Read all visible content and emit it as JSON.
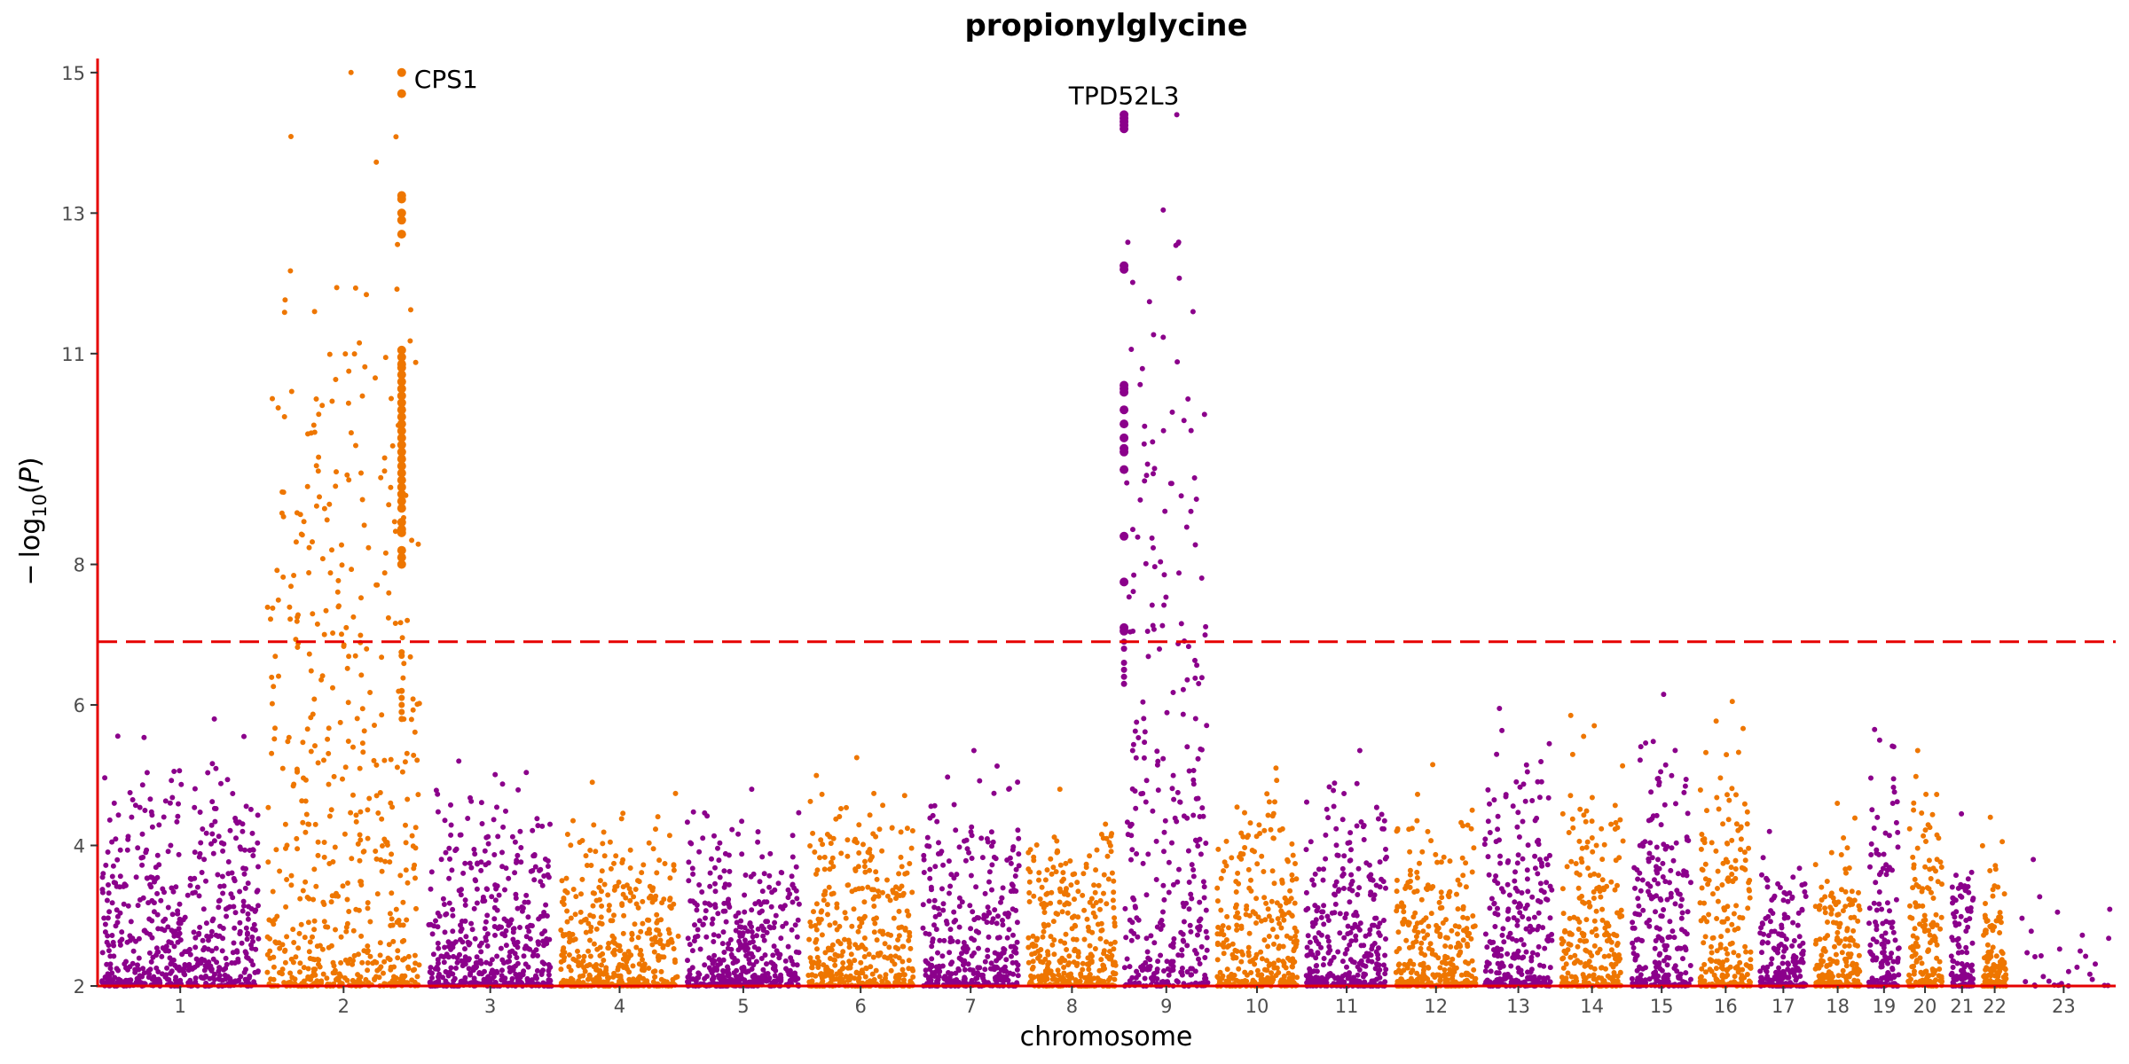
{
  "chart_data": {
    "type": "scatter",
    "subtype": "manhattan",
    "title": "propionylglycine",
    "xlabel": "chromosome",
    "ylabel": "−log10(P)",
    "ylabel_parts": {
      "minus": "−",
      "log": "log",
      "sub": "10",
      "open": "(",
      "p": "P",
      "close": ")"
    },
    "ylim": [
      2,
      15.2
    ],
    "yticks": [
      2,
      4,
      6,
      8,
      11,
      13,
      15
    ],
    "threshold_line": 6.9,
    "colors": {
      "odd": "#8B008B",
      "even": "#EE7600",
      "axis": "#e60000",
      "threshold": "#e60000"
    },
    "chromosomes": [
      {
        "label": "1",
        "len": 248,
        "max": 5.8
      },
      {
        "label": "2",
        "len": 242,
        "max": 15.0
      },
      {
        "label": "3",
        "len": 198,
        "max": 5.2
      },
      {
        "label": "4",
        "len": 190,
        "max": 4.9
      },
      {
        "label": "5",
        "len": 181,
        "max": 4.8
      },
      {
        "label": "6",
        "len": 171,
        "max": 5.25
      },
      {
        "label": "7",
        "len": 159,
        "max": 5.35
      },
      {
        "label": "8",
        "len": 145,
        "max": 4.8
      },
      {
        "label": "9",
        "len": 138,
        "max": 14.4
      },
      {
        "label": "10",
        "len": 134,
        "max": 5.1
      },
      {
        "label": "11",
        "len": 135,
        "max": 5.35
      },
      {
        "label": "12",
        "len": 133,
        "max": 5.15
      },
      {
        "label": "13",
        "len": 114,
        "max": 5.95
      },
      {
        "label": "14",
        "len": 107,
        "max": 5.85
      },
      {
        "label": "15",
        "len": 102,
        "max": 6.15
      },
      {
        "label": "16",
        "len": 90,
        "max": 6.05
      },
      {
        "label": "17",
        "len": 83,
        "max": 4.2
      },
      {
        "label": "18",
        "len": 80,
        "max": 4.6
      },
      {
        "label": "19",
        "len": 59,
        "max": 5.65
      },
      {
        "label": "20",
        "len": 64,
        "max": 5.35
      },
      {
        "label": "21",
        "len": 47,
        "max": 4.45
      },
      {
        "label": "22",
        "len": 51,
        "max": 4.4
      },
      {
        "label": "23",
        "len": 156,
        "max": 3.8
      }
    ],
    "peaks": [
      {
        "gene": "CPS1",
        "chrom": "2",
        "pos": 0.86,
        "values": [
          15.0,
          14.7,
          13.25,
          13.2,
          13.0,
          12.9,
          12.7,
          11.05,
          10.95,
          10.85,
          10.8,
          10.7,
          10.6,
          10.5,
          10.4,
          10.3,
          10.2,
          10.1,
          10.0,
          9.9,
          9.8,
          9.7,
          9.6,
          9.5,
          9.4,
          9.3,
          9.2,
          9.1,
          9.0,
          8.9,
          8.8,
          8.6,
          8.5,
          8.45,
          8.2,
          8.1,
          8.0,
          6.75,
          6.7,
          6.2,
          6.1,
          6.0,
          5.9,
          5.8
        ]
      },
      {
        "gene": "TPD52L3",
        "chrom": "9",
        "pos": 0.04,
        "values": [
          14.4,
          14.35,
          14.3,
          14.25,
          14.2,
          12.25,
          12.2,
          10.55,
          10.5,
          10.45,
          10.2,
          10.0,
          9.8,
          9.65,
          9.6,
          9.35,
          8.4,
          7.75,
          7.1,
          7.05,
          6.9,
          6.8,
          6.6,
          6.5,
          6.4,
          6.3
        ]
      }
    ]
  }
}
